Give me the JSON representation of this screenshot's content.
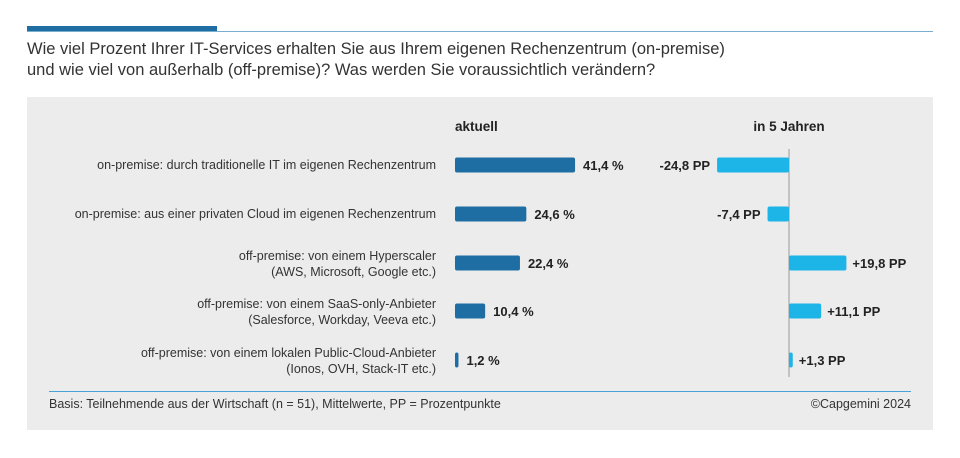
{
  "title_line1": "Wie viel Prozent Ihrer IT-Services erhalten Sie aus Ihrem eigenen Rechenzentrum (on-premise)",
  "title_line2": "und wie viel von außerhalb (off-premise)? Was werden Sie voraussichtlich verändern?",
  "footer": {
    "basis": "Basis: Teilnehmende aus der Wirtschaft (n = 51), Mittelwerte, PP = Prozentpunkte",
    "copyright": "©Capgemini 2024"
  },
  "colors": {
    "current_bar": "#1f6ea3",
    "change_bar": "#1db4e8",
    "panel_bg": "#ececec",
    "accent": "#1f6ea3"
  },
  "chart_data": {
    "type": "bar",
    "orientation": "horizontal",
    "column_headers": [
      "aktuell",
      "in 5 Jahren"
    ],
    "categories": [
      [
        "on-premise: durch traditionelle IT im eigenen Rechenzentrum"
      ],
      [
        "on-premise: aus einer privaten Cloud im eigenen Rechenzentrum"
      ],
      [
        "off-premise: von einem Hyperscaler",
        "(AWS, Microsoft, Google etc.)"
      ],
      [
        "off-premise: von einem SaaS-only-Anbieter",
        "(Salesforce, Workday, Veeva etc.)"
      ],
      [
        "off-premise: von einem lokalen Public-Cloud-Anbieter",
        "(Ionos, OVH, Stack-IT etc.)"
      ]
    ],
    "series": [
      {
        "name": "aktuell",
        "values": [
          41.4,
          24.6,
          22.4,
          10.4,
          1.2
        ],
        "labels": [
          "41,4 %",
          "24,6 %",
          "22,4 %",
          "10,4 %",
          "1,2 %"
        ],
        "color": "#1f6ea3"
      },
      {
        "name": "in 5 Jahren",
        "values": [
          -24.8,
          -7.4,
          19.8,
          11.1,
          1.3
        ],
        "labels": [
          "-24,8 PP",
          "-7,4 PP",
          "+19,8 PP",
          "+11,1 PP",
          "+1,3 PP"
        ],
        "color": "#1db4e8"
      }
    ]
  }
}
